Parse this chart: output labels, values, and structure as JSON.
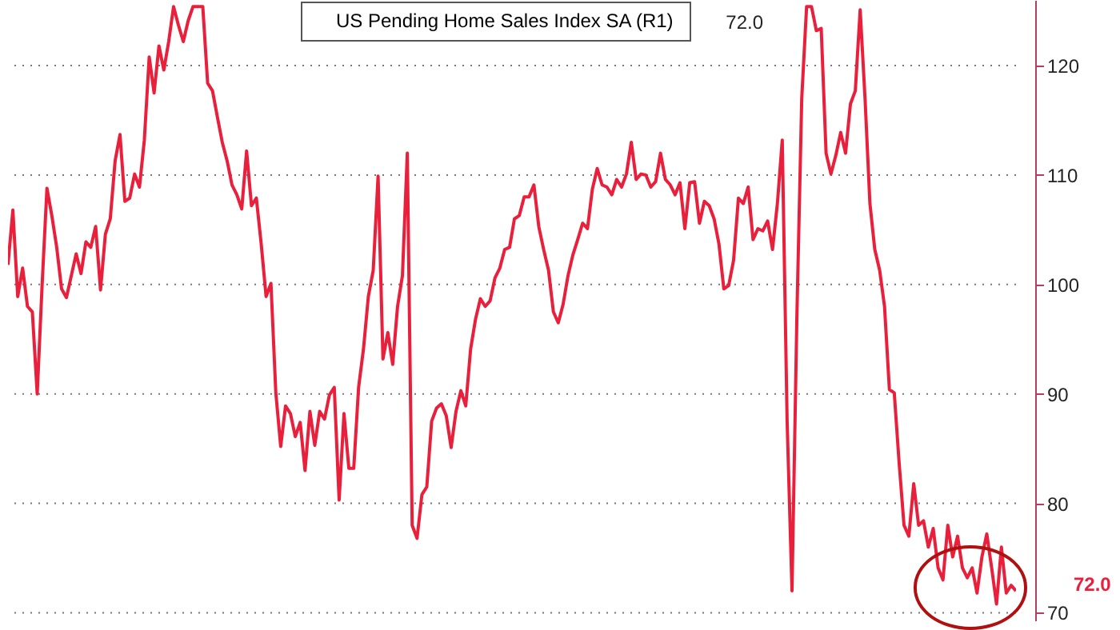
{
  "chart_data": {
    "type": "line",
    "categories": [
      null,
      null,
      null,
      null,
      null,
      null,
      null,
      null,
      null,
      null,
      null,
      null,
      null,
      null,
      null,
      null,
      null,
      null,
      null,
      null,
      null,
      null,
      null,
      null,
      null,
      null,
      null,
      null,
      null,
      null,
      null,
      null,
      null,
      null,
      null,
      null,
      null,
      null,
      null,
      null,
      null,
      null,
      null,
      null,
      null,
      null,
      null,
      null,
      null,
      null,
      null,
      null,
      null,
      null,
      null,
      null,
      null,
      null,
      null,
      null,
      null,
      null,
      null,
      null,
      null,
      null,
      null,
      null,
      null,
      null,
      null,
      null,
      null,
      null,
      null,
      null,
      null,
      null,
      null,
      null,
      null,
      null,
      null,
      null,
      null,
      null,
      null,
      null,
      null,
      null,
      null,
      null,
      null,
      null,
      null,
      null,
      null,
      null,
      null,
      null,
      null,
      null,
      null,
      null,
      null,
      null,
      null,
      null,
      null,
      null,
      null,
      null,
      null,
      null,
      null,
      null,
      null,
      null,
      null,
      null,
      null,
      null,
      null,
      null,
      null,
      null,
      null,
      null,
      null,
      null,
      null,
      null,
      null,
      null,
      null,
      null,
      null,
      null,
      null,
      null,
      null,
      null,
      null,
      null,
      null,
      null,
      null,
      null,
      null,
      null,
      null,
      null,
      null,
      null,
      null,
      null,
      null,
      null,
      null,
      null,
      null,
      null,
      null,
      null,
      null,
      null,
      null,
      null,
      null,
      null,
      null,
      null,
      null,
      null,
      null,
      null,
      null,
      null,
      null,
      null,
      null,
      null,
      null,
      null,
      null,
      null,
      null,
      null,
      null,
      null,
      null,
      null,
      null,
      null,
      null,
      null,
      null,
      null,
      null,
      null,
      null,
      null,
      null,
      null,
      null,
      null,
      null,
      null
    ],
    "series": [
      {
        "name": "US Pending Home Sales Index SA  (R1)",
        "color": "#e8203c",
        "values": [
          101.8,
          106.8,
          98.9,
          101.5,
          98,
          97.5,
          90,
          99.9,
          108.8,
          106.3,
          103.4,
          99.6,
          98.8,
          100.8,
          102.8,
          101,
          103.9,
          103.4,
          105.3,
          99.5,
          104.6,
          106,
          111.3,
          113.7,
          107.6,
          107.9,
          110.1,
          108.9,
          113.2,
          120.8,
          117.5,
          121.8,
          119.6,
          122.2,
          125.4,
          123.7,
          122.2,
          124.1,
          125.4,
          125.4,
          125.4,
          118.4,
          117.7,
          115.3,
          113,
          111.3,
          109.1,
          108.2,
          106.9,
          112.2,
          107.2,
          107.9,
          103.7,
          98.9,
          100.1,
          90.1,
          85.2,
          88.9,
          88.2,
          86.1,
          87.4,
          83,
          88.4,
          85.3,
          88.4,
          87.7,
          89.9,
          90.6,
          80.3,
          88.2,
          83.2,
          83.2,
          90.6,
          94.1,
          98.9,
          101.3,
          109.9,
          93.2,
          95.6,
          92.7,
          98,
          100.8,
          112,
          78,
          76.8,
          80.8,
          81.5,
          87.5,
          88.7,
          89.1,
          88,
          85.1,
          88.4,
          90.3,
          88.9,
          94.1,
          96.8,
          98.7,
          98,
          98.5,
          100.6,
          101.5,
          103.2,
          103.4,
          106,
          106.3,
          108,
          108,
          109.1,
          105.3,
          103.2,
          101.3,
          97.5,
          96.5,
          98.2,
          100.8,
          102.7,
          104.1,
          105.6,
          105.1,
          108.7,
          110.6,
          109.1,
          108.9,
          108.2,
          109.6,
          108.9,
          110.1,
          113,
          109.6,
          110.1,
          110,
          108.9,
          109.4,
          112,
          109.6,
          109.1,
          108.2,
          109.3,
          105.1,
          109.3,
          109.4,
          105.6,
          107.6,
          107.2,
          106,
          103.7,
          99.6,
          99.9,
          102.2,
          107.9,
          107.4,
          108.9,
          104.1,
          105.1,
          104.9,
          105.8,
          103.2,
          107.4,
          113.2,
          87.5,
          72,
          97,
          117,
          125.4,
          125.4,
          123.2,
          123.4,
          112,
          110.1,
          111.8,
          113.9,
          112,
          116.5,
          117.7,
          125.1,
          117,
          107.4,
          103.2,
          101.3,
          98,
          90.4,
          90.1,
          83.7,
          78,
          77,
          81.8,
          78,
          78.4,
          76,
          77.7,
          74.1,
          73,
          78,
          75.1,
          77,
          74.1,
          73.2,
          74.1,
          71.8,
          75.1,
          77.2,
          74.1,
          70.8,
          76,
          71.8,
          72.5,
          72
        ]
      }
    ],
    "ylim": [
      69.3,
      126
    ],
    "yticks": [
      70,
      80,
      90,
      100,
      110,
      120
    ],
    "grid": "y",
    "legend": "top",
    "annotations": [
      "72.0",
      "72.0"
    ]
  }
}
